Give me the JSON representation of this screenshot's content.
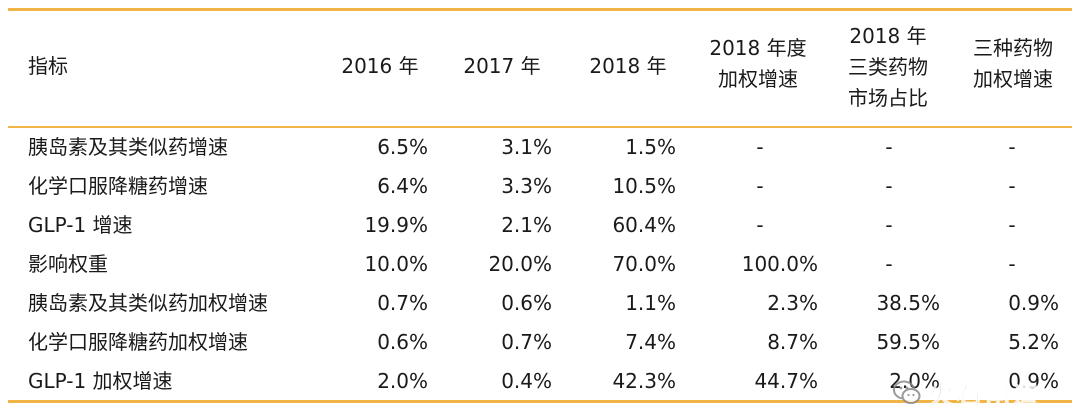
{
  "table": {
    "headers": [
      [
        "指标"
      ],
      [
        "2016 年"
      ],
      [
        "2017 年"
      ],
      [
        "2018 年"
      ],
      [
        "2018 年度",
        "加权增速"
      ],
      [
        "2018 年",
        "三类药物",
        "市场占比"
      ],
      [
        "三种药物",
        "加权增速"
      ]
    ],
    "rows": [
      [
        "胰岛素及其类似药增速",
        "6.5%",
        "3.1%",
        "1.5%",
        "-",
        "-",
        "-"
      ],
      [
        "化学口服降糖药增速",
        "6.4%",
        "3.3%",
        "10.5%",
        "-",
        "-",
        "-"
      ],
      [
        "GLP-1 增速",
        "19.9%",
        "2.1%",
        "60.4%",
        "-",
        "-",
        "-"
      ],
      [
        "影响权重",
        "10.0%",
        "20.0%",
        "70.0%",
        "100.0%",
        "-",
        "-"
      ],
      [
        "胰岛素及其类似药加权增速",
        "0.7%",
        "0.6%",
        "1.1%",
        "2.3%",
        "38.5%",
        "0.9%"
      ],
      [
        "化学口服降糖药加权增速",
        "0.6%",
        "0.7%",
        "7.4%",
        "8.7%",
        "59.5%",
        "5.2%"
      ],
      [
        "GLP-1 加权增速",
        "2.0%",
        "0.4%",
        "42.3%",
        "44.7%",
        "2.0%",
        "0.9%"
      ]
    ]
  },
  "watermark": {
    "text": "火石创造",
    "icon": "wechat-icon"
  },
  "colors": {
    "rule": "#f0b447",
    "text": "#1a1a1a",
    "watermark": "#8a8a8a"
  }
}
